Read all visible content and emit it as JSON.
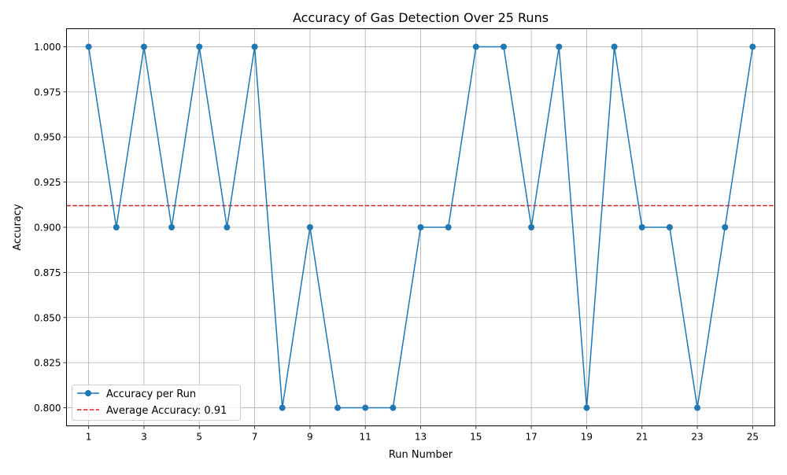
{
  "chart_data": {
    "type": "line",
    "title": "Accuracy of Gas Detection Over 25 Runs",
    "xlabel": "Run Number",
    "ylabel": "Accuracy",
    "x": [
      1,
      2,
      3,
      4,
      5,
      6,
      7,
      8,
      9,
      10,
      11,
      12,
      13,
      14,
      15,
      16,
      17,
      18,
      19,
      20,
      21,
      22,
      23,
      24,
      25
    ],
    "xticks": [
      "1",
      "3",
      "5",
      "7",
      "9",
      "11",
      "13",
      "15",
      "17",
      "19",
      "21",
      "23",
      "25"
    ],
    "yticks": [
      "0.800",
      "0.825",
      "0.850",
      "0.875",
      "0.900",
      "0.925",
      "0.950",
      "0.975",
      "1.000"
    ],
    "xlim": [
      0.2,
      25.8
    ],
    "ylim": [
      0.79,
      1.01
    ],
    "grid": true,
    "legend_position": "lower-left",
    "series": [
      {
        "name": "Accuracy per Run",
        "color": "#1f77b4",
        "style": "solid-with-circle-markers",
        "values": [
          1.0,
          0.9,
          1.0,
          0.9,
          1.0,
          0.9,
          1.0,
          0.8,
          0.9,
          0.8,
          0.8,
          0.8,
          0.9,
          0.9,
          1.0,
          1.0,
          0.9,
          1.0,
          0.8,
          1.0,
          0.9,
          0.9,
          0.8,
          0.9,
          1.0
        ]
      }
    ],
    "reference_lines": [
      {
        "name": "Average Accuracy: 0.91",
        "value": 0.912,
        "color": "#d62728",
        "style": "dashed"
      }
    ]
  }
}
